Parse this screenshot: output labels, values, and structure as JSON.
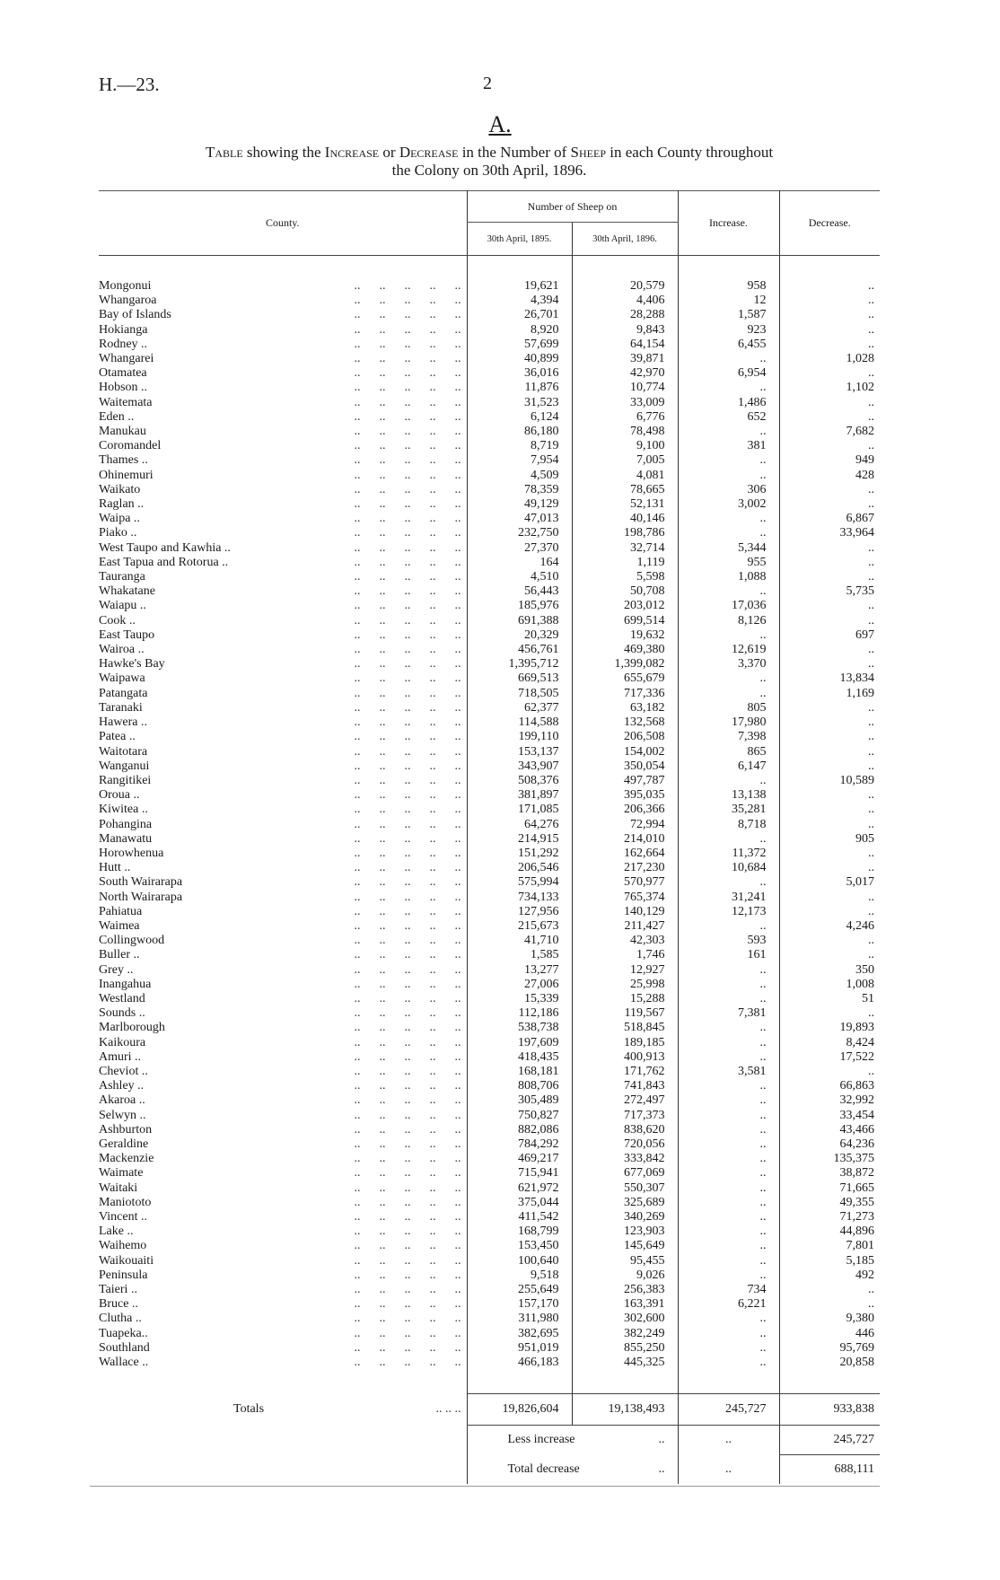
{
  "header": {
    "reference": "H.—23.",
    "page_number": "2",
    "table_letter": "A."
  },
  "title": {
    "line1_parts": [
      [
        "sc",
        "Table"
      ],
      [
        "",
        "showing the"
      ],
      [
        "sc",
        "Increase"
      ],
      [
        "",
        "or"
      ],
      [
        "sc",
        "Decrease"
      ],
      [
        "",
        "in the Number of"
      ],
      [
        "sc",
        "Sheep"
      ],
      [
        "",
        "in each County throughout"
      ]
    ],
    "line2": "the Colony on 30th April, 1896."
  },
  "table": {
    "columns": {
      "county": "County.",
      "group": "Number of Sheep on",
      "y1895": "30th April, 1895.",
      "y1896": "30th April, 1896.",
      "increase": "Increase.",
      "decrease": "Decrease."
    },
    "leader": "..      ..      ..      ..      ..",
    "rows": [
      [
        "Mongonui",
        "19,621",
        "20,579",
        "958",
        ".."
      ],
      [
        "Whangaroa",
        "4,394",
        "4,406",
        "12",
        ".."
      ],
      [
        "Bay of Islands",
        "26,701",
        "28,288",
        "1,587",
        ".."
      ],
      [
        "Hokianga",
        "8,920",
        "9,843",
        "923",
        ".."
      ],
      [
        "Rodney ..",
        "57,699",
        "64,154",
        "6,455",
        ".."
      ],
      [
        "Whangarei",
        "40,899",
        "39,871",
        "..",
        "1,028"
      ],
      [
        "Otamatea",
        "36,016",
        "42,970",
        "6,954",
        ".."
      ],
      [
        "Hobson ..",
        "11,876",
        "10,774",
        "..",
        "1,102"
      ],
      [
        "Waitemata",
        "31,523",
        "33,009",
        "1,486",
        ".."
      ],
      [
        "Eden ..",
        "6,124",
        "6,776",
        "652",
        ".."
      ],
      [
        "Manukau",
        "86,180",
        "78,498",
        "..",
        "7,682"
      ],
      [
        "Coromandel",
        "8,719",
        "9,100",
        "381",
        ".."
      ],
      [
        "Thames ..",
        "7,954",
        "7,005",
        "..",
        "949"
      ],
      [
        "Ohinemuri",
        "4,509",
        "4,081",
        "..",
        "428"
      ],
      [
        "Waikato",
        "78,359",
        "78,665",
        "306",
        ".."
      ],
      [
        "Raglan ..",
        "49,129",
        "52,131",
        "3,002",
        ".."
      ],
      [
        "Waipa ..",
        "47,013",
        "40,146",
        "..",
        "6,867"
      ],
      [
        "Piako ..",
        "232,750",
        "198,786",
        "..",
        "33,964"
      ],
      [
        "West Taupo and Kawhia ..",
        "27,370",
        "32,714",
        "5,344",
        ".."
      ],
      [
        "East Tapua and Rotorua ..",
        "164",
        "1,119",
        "955",
        ".."
      ],
      [
        "Tauranga",
        "4,510",
        "5,598",
        "1,088",
        ".."
      ],
      [
        "Whakatane",
        "56,443",
        "50,708",
        "..",
        "5,735"
      ],
      [
        "Waiapu ..",
        "185,976",
        "203,012",
        "17,036",
        ".."
      ],
      [
        "Cook ..",
        "691,388",
        "699,514",
        "8,126",
        ".."
      ],
      [
        "East Taupo",
        "20,329",
        "19,632",
        "..",
        "697"
      ],
      [
        "Wairoa ..",
        "456,761",
        "469,380",
        "12,619",
        ".."
      ],
      [
        "Hawke's Bay",
        "1,395,712",
        "1,399,082",
        "3,370",
        ".."
      ],
      [
        "Waipawa",
        "669,513",
        "655,679",
        "..",
        "13,834"
      ],
      [
        "Patangata",
        "718,505",
        "717,336",
        "..",
        "1,169"
      ],
      [
        "Taranaki",
        "62,377",
        "63,182",
        "805",
        ".."
      ],
      [
        "Hawera ..",
        "114,588",
        "132,568",
        "17,980",
        ".."
      ],
      [
        "Patea ..",
        "199,110",
        "206,508",
        "7,398",
        ".."
      ],
      [
        "Waitotara",
        "153,137",
        "154,002",
        "865",
        ".."
      ],
      [
        "Wanganui",
        "343,907",
        "350,054",
        "6,147",
        ".."
      ],
      [
        "Rangitikei",
        "508,376",
        "497,787",
        "..",
        "10,589"
      ],
      [
        "Oroua ..",
        "381,897",
        "395,035",
        "13,138",
        ".."
      ],
      [
        "Kiwitea ..",
        "171,085",
        "206,366",
        "35,281",
        ".."
      ],
      [
        "Pohangina",
        "64,276",
        "72,994",
        "8,718",
        ".."
      ],
      [
        "Manawatu",
        "214,915",
        "214,010",
        "..",
        "905"
      ],
      [
        "Horowhenua",
        "151,292",
        "162,664",
        "11,372",
        ".."
      ],
      [
        "Hutt ..",
        "206,546",
        "217,230",
        "10,684",
        ".."
      ],
      [
        "South Wairarapa",
        "575,994",
        "570,977",
        "..",
        "5,017"
      ],
      [
        "North Wairarapa",
        "734,133",
        "765,374",
        "31,241",
        ".."
      ],
      [
        "Pahiatua",
        "127,956",
        "140,129",
        "12,173",
        ".."
      ],
      [
        "Waimea",
        "215,673",
        "211,427",
        "..",
        "4,246"
      ],
      [
        "Collingwood",
        "41,710",
        "42,303",
        "593",
        ".."
      ],
      [
        "Buller ..",
        "1,585",
        "1,746",
        "161",
        ".."
      ],
      [
        "Grey ..",
        "13,277",
        "12,927",
        "..",
        "350"
      ],
      [
        "Inangahua",
        "27,006",
        "25,998",
        "..",
        "1,008"
      ],
      [
        "Westland",
        "15,339",
        "15,288",
        "..",
        "51"
      ],
      [
        "Sounds ..",
        "112,186",
        "119,567",
        "7,381",
        ".."
      ],
      [
        "Marlborough",
        "538,738",
        "518,845",
        "..",
        "19,893"
      ],
      [
        "Kaikoura",
        "197,609",
        "189,185",
        "..",
        "8,424"
      ],
      [
        "Amuri ..",
        "418,435",
        "400,913",
        "..",
        "17,522"
      ],
      [
        "Cheviot ..",
        "168,181",
        "171,762",
        "3,581",
        ".."
      ],
      [
        "Ashley ..",
        "808,706",
        "741,843",
        "..",
        "66,863"
      ],
      [
        "Akaroa ..",
        "305,489",
        "272,497",
        "..",
        "32,992"
      ],
      [
        "Selwyn ..",
        "750,827",
        "717,373",
        "..",
        "33,454"
      ],
      [
        "Ashburton",
        "882,086",
        "838,620",
        "..",
        "43,466"
      ],
      [
        "Geraldine",
        "784,292",
        "720,056",
        "..",
        "64,236"
      ],
      [
        "Mackenzie",
        "469,217",
        "333,842",
        "..",
        "135,375"
      ],
      [
        "Waimate",
        "715,941",
        "677,069",
        "..",
        "38,872"
      ],
      [
        "Waitaki",
        "621,972",
        "550,307",
        "..",
        "71,665"
      ],
      [
        "Maniototo",
        "375,044",
        "325,689",
        "..",
        "49,355"
      ],
      [
        "Vincent ..",
        "411,542",
        "340,269",
        "..",
        "71,273"
      ],
      [
        "Lake ..",
        "168,799",
        "123,903",
        "..",
        "44,896"
      ],
      [
        "Waihemo",
        "153,450",
        "145,649",
        "..",
        "7,801"
      ],
      [
        "Waikouaiti",
        "100,640",
        "95,455",
        "..",
        "5,185"
      ],
      [
        "Peninsula",
        "9,518",
        "9,026",
        "..",
        "492"
      ],
      [
        "Taieri ..",
        "255,649",
        "256,383",
        "734",
        ".."
      ],
      [
        "Bruce ..",
        "157,170",
        "163,391",
        "6,221",
        ".."
      ],
      [
        "Clutha ..",
        "311,980",
        "302,600",
        "..",
        "9,380"
      ],
      [
        "Tuapeka..",
        "382,695",
        "382,249",
        "..",
        "446"
      ],
      [
        "Southland",
        "951,019",
        "855,250",
        "..",
        "95,769"
      ],
      [
        "Wallace ..",
        "466,183",
        "445,325",
        "..",
        "20,858"
      ]
    ],
    "totals": {
      "label": "Totals",
      "leader": "..          ..          ..",
      "y1895": "19,826,604",
      "y1896": "19,138,493",
      "increase": "245,727",
      "decrease": "933,838"
    },
    "less_increase": {
      "label": "Less increase",
      "dots1": "..",
      "dots2": "..",
      "value": "245,727"
    },
    "total_decrease": {
      "label": "Total decrease",
      "dots1": "..",
      "dots2": "..",
      "value": "688,111"
    }
  }
}
